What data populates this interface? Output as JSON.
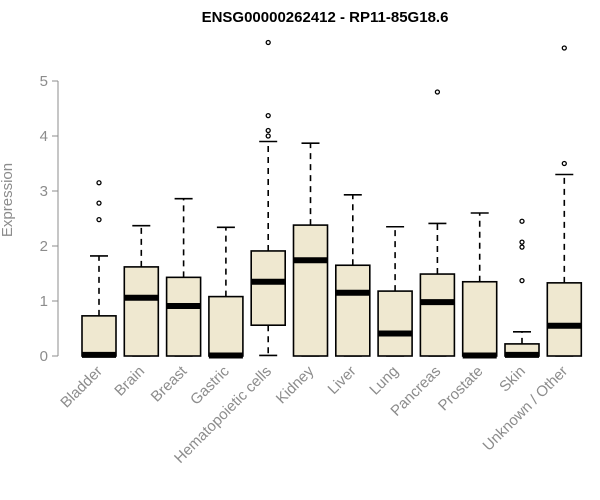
{
  "chart_data": {
    "type": "boxplot",
    "title": "ENSG00000262412 - RP11-85G18.6",
    "ylabel": "Expression",
    "xlabel": "",
    "ylim": [
      0,
      5.8
    ],
    "yticks": [
      0,
      1,
      2,
      3,
      4,
      5
    ],
    "colors": {
      "box_fill": "#efe8d0",
      "box_stroke": "#000000",
      "axis": "#8c8c8c"
    },
    "categories": [
      "Bladder",
      "Brain",
      "Breast",
      "Gastric",
      "Hematopoietic cells",
      "Kidney",
      "Liver",
      "Lung",
      "Pancreas",
      "Prostate",
      "Skin",
      "Unknown / Other"
    ],
    "boxes": [
      {
        "min": 0,
        "q1": 0,
        "median": 0.02,
        "q3": 0.73,
        "max": 1.82,
        "outliers": [
          2.48,
          2.78,
          3.15
        ]
      },
      {
        "min": 0,
        "q1": 0,
        "median": 1.06,
        "q3": 1.62,
        "max": 2.37,
        "outliers": []
      },
      {
        "min": 0,
        "q1": 0,
        "median": 0.91,
        "q3": 1.43,
        "max": 2.86,
        "outliers": []
      },
      {
        "min": 0,
        "q1": 0,
        "median": 0.01,
        "q3": 1.08,
        "max": 2.34,
        "outliers": []
      },
      {
        "min": 0.01,
        "q1": 0.56,
        "median": 1.35,
        "q3": 1.91,
        "max": 3.9,
        "outliers": [
          4.0,
          4.1,
          4.37,
          5.7
        ]
      },
      {
        "min": 0,
        "q1": 0,
        "median": 1.74,
        "q3": 2.38,
        "max": 3.87,
        "outliers": []
      },
      {
        "min": 0,
        "q1": 0,
        "median": 1.15,
        "q3": 1.65,
        "max": 2.93,
        "outliers": []
      },
      {
        "min": 0,
        "q1": 0,
        "median": 0.41,
        "q3": 1.18,
        "max": 2.35,
        "outliers": []
      },
      {
        "min": 0,
        "q1": 0,
        "median": 0.98,
        "q3": 1.49,
        "max": 2.41,
        "outliers": [
          4.8
        ]
      },
      {
        "min": 0,
        "q1": 0,
        "median": 0.01,
        "q3": 1.35,
        "max": 2.6,
        "outliers": []
      },
      {
        "min": 0,
        "q1": 0,
        "median": 0.02,
        "q3": 0.22,
        "max": 0.44,
        "outliers": [
          1.37,
          1.98,
          2.07,
          2.45
        ]
      },
      {
        "min": 0,
        "q1": 0,
        "median": 0.55,
        "q3": 1.33,
        "max": 3.3,
        "outliers": [
          3.5,
          5.6
        ]
      }
    ]
  }
}
